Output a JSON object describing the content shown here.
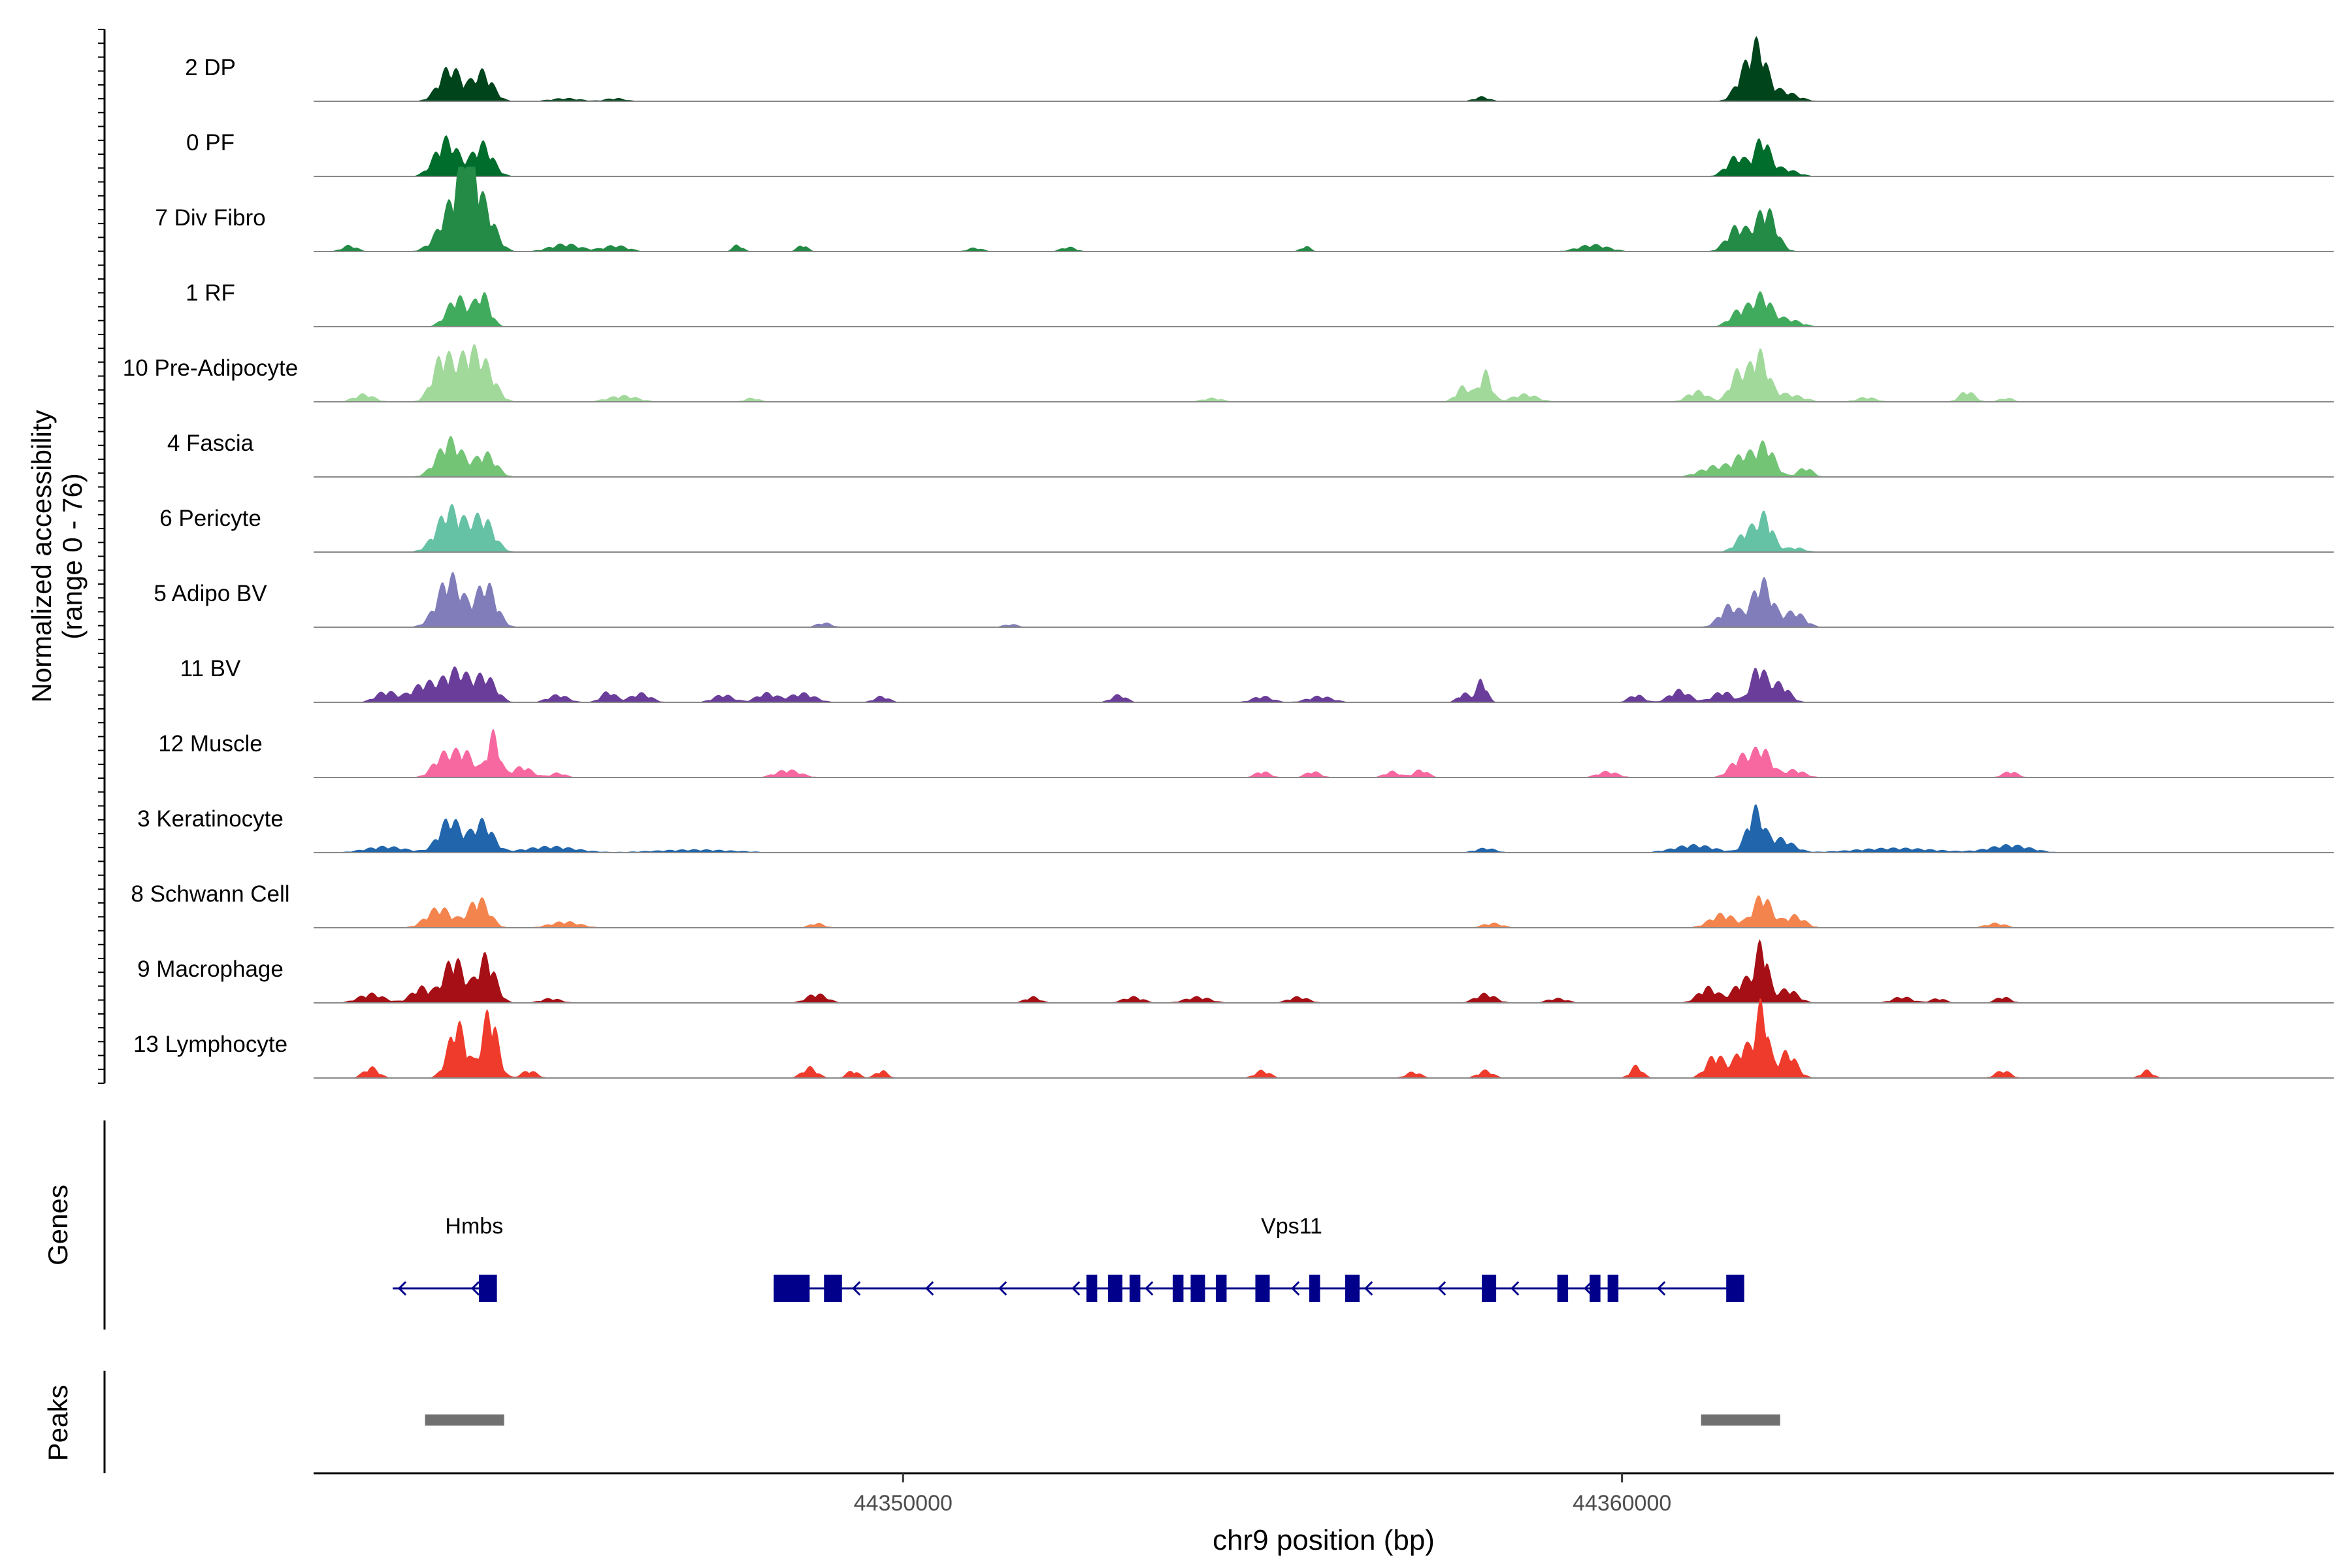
{
  "chart_data": {
    "type": "area",
    "title": "",
    "ylabel": "Normalized accessibility",
    "ylabel_range": "(range 0 - 76)",
    "ylim": [
      0,
      76
    ],
    "xlabel": "chr9 position (bp)",
    "xlim": [
      44341800,
      44369900
    ],
    "x_ticks": [
      44350000,
      44360000
    ],
    "x_tick_labels": [
      "44350000",
      "44360000"
    ],
    "grid": false,
    "legend": "none",
    "background": "#ffffff",
    "baseline_color": "#888888",
    "tracks": [
      {
        "name": "2 DP",
        "color": "#00441b",
        "peaks": [
          [
            44343700,
            44,
            220
          ],
          [
            44344150,
            38,
            200
          ],
          [
            44361700,
            34,
            180
          ],
          [
            44361900,
            60,
            160
          ],
          [
            44362200,
            14,
            300
          ],
          [
            44358050,
            6,
            150
          ],
          [
            44346000,
            4,
            200
          ],
          [
            44345300,
            4,
            300
          ]
        ]
      },
      {
        "name": "0 PF",
        "color": "#006d2c",
        "peaks": [
          [
            44343650,
            48,
            230
          ],
          [
            44344150,
            42,
            200
          ],
          [
            44361600,
            26,
            200
          ],
          [
            44361950,
            46,
            150
          ],
          [
            44362250,
            10,
            250
          ]
        ]
      },
      {
        "name": "7 Div Fibro",
        "color": "#238b45",
        "peaks": [
          [
            44343800,
            70,
            300
          ],
          [
            44343950,
            90,
            150
          ],
          [
            44344200,
            45,
            200
          ],
          [
            44362000,
            56,
            200
          ],
          [
            44361600,
            32,
            200
          ],
          [
            44345300,
            10,
            300
          ],
          [
            44346000,
            8,
            250
          ],
          [
            44347700,
            9,
            100
          ],
          [
            44348600,
            9,
            100
          ],
          [
            44359600,
            9,
            300
          ],
          [
            44355600,
            7,
            100
          ],
          [
            44352300,
            6,
            150
          ],
          [
            44351000,
            5,
            150
          ],
          [
            44342300,
            8,
            150
          ]
        ]
      },
      {
        "name": "1 RF",
        "color": "#41ab5d",
        "peaks": [
          [
            44343800,
            38,
            200
          ],
          [
            44344150,
            42,
            150
          ],
          [
            44361650,
            22,
            200
          ],
          [
            44361950,
            38,
            180
          ],
          [
            44362300,
            10,
            250
          ]
        ]
      },
      {
        "name": "10 Pre-Adipocyte",
        "color": "#a1d99b",
        "peaks": [
          [
            44343600,
            60,
            200
          ],
          [
            44343950,
            56,
            200
          ],
          [
            44344200,
            40,
            200
          ],
          [
            44342500,
            10,
            200
          ],
          [
            44346100,
            8,
            300
          ],
          [
            44347900,
            5,
            150
          ],
          [
            44357800,
            20,
            150
          ],
          [
            44358100,
            38,
            120
          ],
          [
            44358650,
            10,
            250
          ],
          [
            44361050,
            14,
            200
          ],
          [
            44361600,
            36,
            150
          ],
          [
            44361900,
            62,
            180
          ],
          [
            44362300,
            10,
            300
          ],
          [
            44363400,
            6,
            200
          ],
          [
            44364800,
            14,
            150
          ],
          [
            44365350,
            5,
            150
          ],
          [
            44354300,
            5,
            200
          ]
        ]
      },
      {
        "name": "4 Fascia",
        "color": "#74c476",
        "peaks": [
          [
            44343700,
            48,
            250
          ],
          [
            44344200,
            30,
            200
          ],
          [
            44361300,
            14,
            300
          ],
          [
            44361700,
            26,
            200
          ],
          [
            44362000,
            40,
            180
          ],
          [
            44362550,
            12,
            150
          ]
        ]
      },
      {
        "name": "6 Pericyte",
        "color": "#66c2a4",
        "peaks": [
          [
            44343700,
            56,
            260
          ],
          [
            44344150,
            44,
            220
          ],
          [
            44361750,
            28,
            200
          ],
          [
            44362000,
            42,
            150
          ],
          [
            44362400,
            6,
            200
          ]
        ]
      },
      {
        "name": "5 Adipo BV",
        "color": "#807dba",
        "peaks": [
          [
            44343700,
            66,
            250
          ],
          [
            44344200,
            56,
            200
          ],
          [
            44361500,
            28,
            200
          ],
          [
            44361950,
            60,
            200
          ],
          [
            44362400,
            20,
            200
          ],
          [
            44351500,
            4,
            150
          ],
          [
            44348900,
            6,
            150
          ]
        ]
      },
      {
        "name": "11 BV",
        "color": "#6a3d9a",
        "peaks": [
          [
            44343350,
            24,
            280
          ],
          [
            44343800,
            40,
            250
          ],
          [
            44344200,
            32,
            200
          ],
          [
            44342800,
            14,
            200
          ],
          [
            44345200,
            10,
            200
          ],
          [
            44345900,
            14,
            150
          ],
          [
            44346350,
            12,
            200
          ],
          [
            44347500,
            10,
            200
          ],
          [
            44348100,
            12,
            200
          ],
          [
            44348600,
            12,
            250
          ],
          [
            44349700,
            8,
            150
          ],
          [
            44353000,
            10,
            150
          ],
          [
            44355000,
            8,
            200
          ],
          [
            44355800,
            8,
            250
          ],
          [
            44357800,
            12,
            120
          ],
          [
            44358050,
            30,
            100
          ],
          [
            44360200,
            10,
            150
          ],
          [
            44360800,
            16,
            200
          ],
          [
            44361400,
            14,
            200
          ],
          [
            44361900,
            46,
            150
          ],
          [
            44362200,
            24,
            180
          ]
        ]
      },
      {
        "name": "12 Muscle",
        "color": "#f768a1",
        "peaks": [
          [
            44343600,
            28,
            200
          ],
          [
            44343900,
            32,
            200
          ],
          [
            44344300,
            56,
            120
          ],
          [
            44344700,
            14,
            200
          ],
          [
            44345200,
            6,
            150
          ],
          [
            44348400,
            10,
            250
          ],
          [
            44355000,
            8,
            150
          ],
          [
            44355700,
            8,
            150
          ],
          [
            44357200,
            10,
            150
          ],
          [
            44356800,
            8,
            150
          ],
          [
            44359800,
            8,
            200
          ],
          [
            44361650,
            26,
            200
          ],
          [
            44361950,
            36,
            180
          ],
          [
            44362400,
            10,
            200
          ],
          [
            44365400,
            8,
            150
          ]
        ]
      },
      {
        "name": "3 Keratinocyte",
        "color": "#2166ac",
        "peaks": [
          [
            44343700,
            44,
            220
          ],
          [
            44344150,
            40,
            200
          ],
          [
            44342800,
            8,
            400
          ],
          [
            44345100,
            8,
            500
          ],
          [
            44361000,
            10,
            400
          ],
          [
            44361850,
            54,
            160
          ],
          [
            44362200,
            18,
            250
          ],
          [
            44365400,
            10,
            400
          ],
          [
            44347100,
            4,
            800
          ],
          [
            44358100,
            6,
            200
          ],
          [
            44363800,
            6,
            800
          ]
        ]
      },
      {
        "name": "8 Schwann Cell",
        "color": "#f4844e",
        "peaks": [
          [
            44343550,
            26,
            250
          ],
          [
            44344100,
            38,
            200
          ],
          [
            44345300,
            8,
            300
          ],
          [
            44348800,
            6,
            150
          ],
          [
            44361400,
            18,
            250
          ],
          [
            44361950,
            42,
            180
          ],
          [
            44362400,
            16,
            200
          ],
          [
            44365200,
            6,
            200
          ],
          [
            44358200,
            6,
            200
          ]
        ]
      },
      {
        "name": "9 Macrophage",
        "color": "#a50f15",
        "peaks": [
          [
            44342600,
            12,
            250
          ],
          [
            44343300,
            20,
            200
          ],
          [
            44343750,
            58,
            200
          ],
          [
            44344200,
            60,
            180
          ],
          [
            44345100,
            6,
            200
          ],
          [
            44348800,
            12,
            200
          ],
          [
            44351800,
            8,
            150
          ],
          [
            44353200,
            8,
            200
          ],
          [
            44354100,
            8,
            250
          ],
          [
            44355500,
            8,
            200
          ],
          [
            44358100,
            12,
            200
          ],
          [
            44359100,
            6,
            200
          ],
          [
            44361200,
            20,
            200
          ],
          [
            44361700,
            30,
            200
          ],
          [
            44361950,
            72,
            120
          ],
          [
            44362300,
            18,
            200
          ],
          [
            44363900,
            8,
            200
          ],
          [
            44365300,
            8,
            150
          ],
          [
            44364400,
            6,
            150
          ]
        ]
      },
      {
        "name": "13 Lymphocyte",
        "color": "#ef3b2c",
        "peaks": [
          [
            44342600,
            14,
            150
          ],
          [
            44343800,
            70,
            180
          ],
          [
            44344250,
            88,
            150
          ],
          [
            44344800,
            10,
            150
          ],
          [
            44348700,
            14,
            150
          ],
          [
            44349300,
            10,
            120
          ],
          [
            44349700,
            10,
            120
          ],
          [
            44355000,
            10,
            150
          ],
          [
            44357100,
            8,
            150
          ],
          [
            44358100,
            10,
            150
          ],
          [
            44360200,
            16,
            120
          ],
          [
            44361300,
            30,
            180
          ],
          [
            44361700,
            40,
            180
          ],
          [
            44361950,
            90,
            120
          ],
          [
            44362300,
            34,
            180
          ],
          [
            44365300,
            10,
            150
          ],
          [
            44367300,
            10,
            120
          ]
        ]
      }
    ],
    "genes": {
      "label": "Genes",
      "color": "#00008b",
      "items": [
        {
          "name": "Hmbs",
          "start": 44342900,
          "end": 44344350,
          "strand": "-",
          "exons": [
            [
              44344100,
              44344350
            ]
          ]
        },
        {
          "name": "Vps11",
          "start": 44348200,
          "end": 44361700,
          "strand": "-",
          "exons": [
            [
              44348200,
              44348700
            ],
            [
              44348900,
              44349150
            ],
            [
              44352550,
              44352700
            ],
            [
              44352850,
              44353050
            ],
            [
              44353150,
              44353300
            ],
            [
              44353750,
              44353900
            ],
            [
              44354000,
              44354200
            ],
            [
              44354350,
              44354500
            ],
            [
              44354900,
              44355100
            ],
            [
              44355650,
              44355800
            ],
            [
              44356150,
              44356350
            ],
            [
              44358050,
              44358250
            ],
            [
              44359100,
              44359250
            ],
            [
              44359550,
              44359700
            ],
            [
              44359800,
              44359950
            ],
            [
              44361450,
              44361700
            ]
          ]
        }
      ]
    },
    "peaks_track": {
      "label": "Peaks",
      "color": "#707070",
      "ranges": [
        [
          44343350,
          44344450
        ],
        [
          44361100,
          44362200
        ]
      ]
    }
  }
}
